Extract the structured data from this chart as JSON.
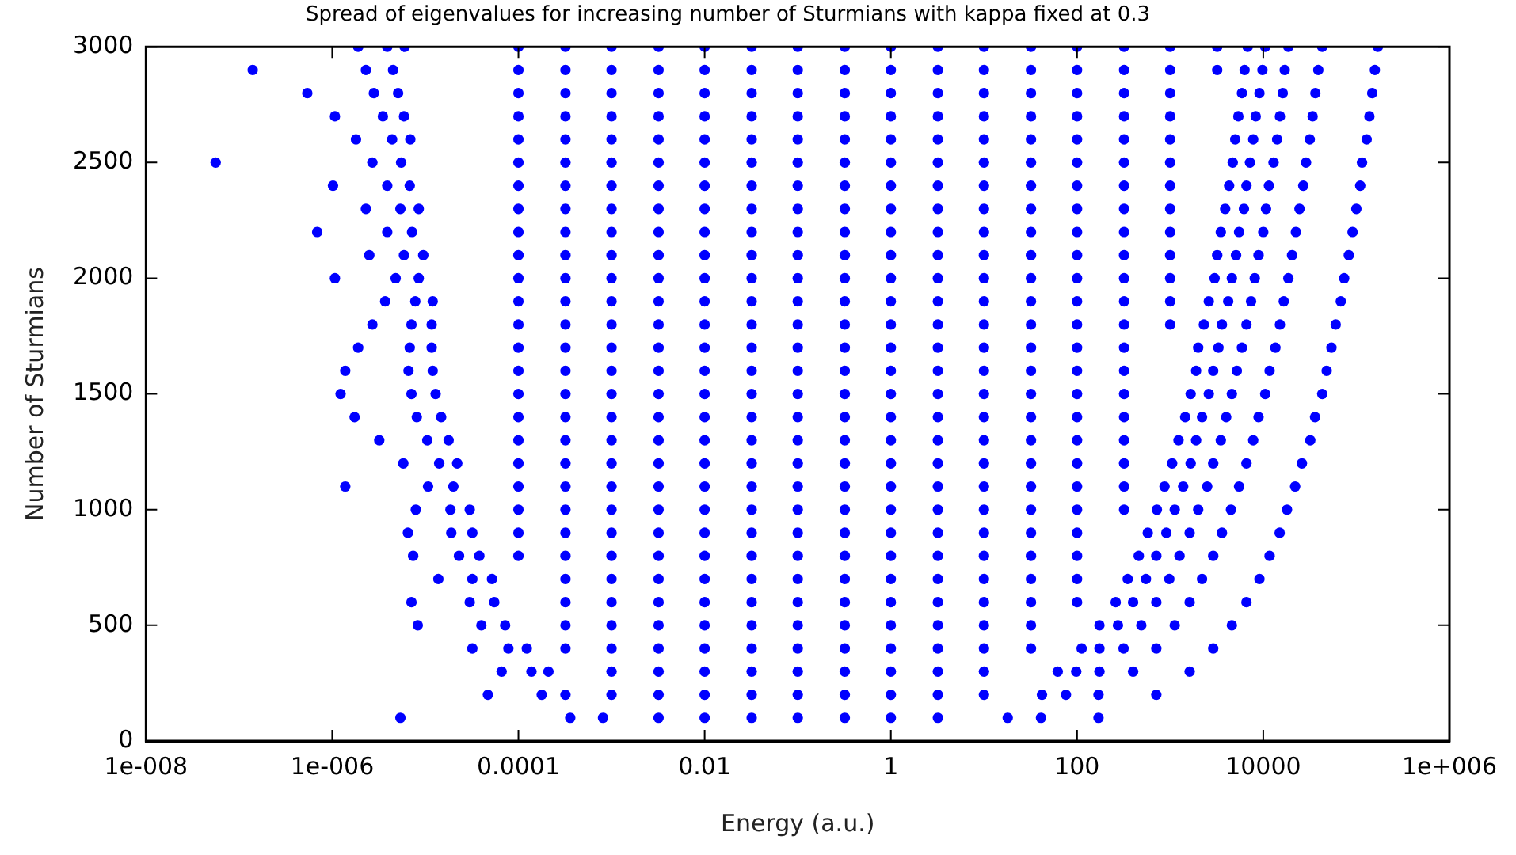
{
  "chart_data": {
    "type": "scatter",
    "title": "Spread of eigenvalues for increasing number of Sturmians with kappa fixed at 0.3",
    "xlabel": "Energy (a.u.)",
    "ylabel": "Number of Sturmians",
    "log": "x",
    "grid": false,
    "legend": false,
    "marker": "circle",
    "xlim": [
      1e-08,
      1000000.0
    ],
    "xticks": [
      {
        "value": 1e-08,
        "label": "1e-008"
      },
      {
        "value": 1e-06,
        "label": "1e-006"
      },
      0.0001,
      0.01,
      1,
      100,
      10000,
      {
        "value": 1000000.0,
        "label": "1e+006"
      }
    ],
    "ylim": [
      0,
      3000
    ],
    "yticks": [
      0,
      500,
      1000,
      1500,
      2000,
      2500,
      3000
    ],
    "series": [
      {
        "color": "#0000ff",
        "x": [
          1.9e-06,
          3.9e-06,
          6e-06,
          0.0001,
          0.00032,
          0.001,
          0.0032,
          0.01,
          0.032,
          0.1,
          0.32,
          1,
          3.2,
          10,
          32,
          100,
          320,
          1000,
          3200,
          6800,
          10500,
          18600,
          43000,
          170000
        ],
        "values": [
          3000,
          3000,
          3000,
          3000,
          3000,
          3000,
          3000,
          3000,
          3000,
          3000,
          3000,
          3000,
          3000,
          3000,
          3000,
          3000,
          3000,
          3000,
          3000,
          3000,
          3000,
          3000,
          3000,
          3000
        ]
      },
      {
        "color": "#0000ff",
        "x": [
          1.4e-07,
          2.3e-06,
          4.5e-06,
          0.0001,
          0.00032,
          0.001,
          0.0032,
          0.01,
          0.032,
          0.1,
          0.32,
          1,
          3.2,
          10,
          32,
          100,
          320,
          1000,
          3200,
          6300,
          9800,
          17000,
          39000,
          158000
        ],
        "values": [
          2900,
          2900,
          2900,
          2900,
          2900,
          2900,
          2900,
          2900,
          2900,
          2900,
          2900,
          2900,
          2900,
          2900,
          2900,
          2900,
          2900,
          2900,
          2900,
          2900,
          2900,
          2900,
          2900,
          2900
        ]
      },
      {
        "color": "#0000ff",
        "x": [
          5.4e-07,
          2.8e-06,
          5.1e-06,
          0.0001,
          0.00032,
          0.001,
          0.0032,
          0.01,
          0.032,
          0.1,
          0.32,
          1,
          3.2,
          10,
          32,
          100,
          320,
          1000,
          5900,
          9100,
          16200,
          36300,
          148000
        ],
        "values": [
          2800,
          2800,
          2800,
          2800,
          2800,
          2800,
          2800,
          2800,
          2800,
          2800,
          2800,
          2800,
          2800,
          2800,
          2800,
          2800,
          2800,
          2800,
          2800,
          2800,
          2800,
          2800,
          2800
        ]
      },
      {
        "color": "#0000ff",
        "x": [
          1.07e-06,
          3.5e-06,
          5.9e-06,
          0.0001,
          0.00032,
          0.001,
          0.0032,
          0.01,
          0.032,
          0.1,
          0.32,
          1,
          3.2,
          10,
          32,
          100,
          320,
          1000,
          5400,
          8300,
          15100,
          33900,
          138000
        ],
        "values": [
          2700,
          2700,
          2700,
          2700,
          2700,
          2700,
          2700,
          2700,
          2700,
          2700,
          2700,
          2700,
          2700,
          2700,
          2700,
          2700,
          2700,
          2700,
          2700,
          2700,
          2700,
          2700,
          2700
        ]
      },
      {
        "color": "#0000ff",
        "x": [
          1.8e-06,
          4.4e-06,
          6.9e-06,
          0.0001,
          0.00032,
          0.001,
          0.0032,
          0.01,
          0.032,
          0.1,
          0.32,
          1,
          3.2,
          10,
          32,
          100,
          320,
          1000,
          5000,
          7800,
          14100,
          31600,
          129000
        ],
        "values": [
          2600,
          2600,
          2600,
          2600,
          2600,
          2600,
          2600,
          2600,
          2600,
          2600,
          2600,
          2600,
          2600,
          2600,
          2600,
          2600,
          2600,
          2600,
          2600,
          2600,
          2600,
          2600,
          2600
        ]
      },
      {
        "color": "#0000ff",
        "x": [
          5.6e-08,
          2.7e-06,
          5.5e-06,
          0.0001,
          0.00032,
          0.001,
          0.0032,
          0.01,
          0.032,
          0.1,
          0.32,
          1,
          3.2,
          10,
          32,
          100,
          320,
          1000,
          4700,
          7200,
          12900,
          28800,
          115000
        ],
        "values": [
          2500,
          2500,
          2500,
          2500,
          2500,
          2500,
          2500,
          2500,
          2500,
          2500,
          2500,
          2500,
          2500,
          2500,
          2500,
          2500,
          2500,
          2500,
          2500,
          2500,
          2500,
          2500,
          2500
        ]
      },
      {
        "color": "#0000ff",
        "x": [
          1.02e-06,
          3.9e-06,
          6.8e-06,
          0.0001,
          0.00032,
          0.001,
          0.0032,
          0.01,
          0.032,
          0.1,
          0.32,
          1,
          3.2,
          10,
          32,
          100,
          320,
          1000,
          4300,
          6600,
          11500,
          26900,
          110000
        ],
        "values": [
          2400,
          2400,
          2400,
          2400,
          2400,
          2400,
          2400,
          2400,
          2400,
          2400,
          2400,
          2400,
          2400,
          2400,
          2400,
          2400,
          2400,
          2400,
          2400,
          2400,
          2400,
          2400,
          2400
        ]
      },
      {
        "color": "#0000ff",
        "x": [
          2.3e-06,
          5.4e-06,
          8.5e-06,
          0.0001,
          0.00032,
          0.001,
          0.0032,
          0.01,
          0.032,
          0.1,
          0.32,
          1,
          3.2,
          10,
          32,
          100,
          320,
          1000,
          3900,
          6200,
          10700,
          24500,
          100000
        ],
        "values": [
          2300,
          2300,
          2300,
          2300,
          2300,
          2300,
          2300,
          2300,
          2300,
          2300,
          2300,
          2300,
          2300,
          2300,
          2300,
          2300,
          2300,
          2300,
          2300,
          2300,
          2300,
          2300,
          2300
        ]
      },
      {
        "color": "#0000ff",
        "x": [
          6.9e-07,
          3.9e-06,
          7.2e-06,
          0.0001,
          0.00032,
          0.001,
          0.0032,
          0.01,
          0.032,
          0.1,
          0.32,
          1,
          3.2,
          10,
          32,
          100,
          320,
          1000,
          3500,
          5500,
          10000,
          22400,
          91000
        ],
        "values": [
          2200,
          2200,
          2200,
          2200,
          2200,
          2200,
          2200,
          2200,
          2200,
          2200,
          2200,
          2200,
          2200,
          2200,
          2200,
          2200,
          2200,
          2200,
          2200,
          2200,
          2200,
          2200,
          2200
        ]
      },
      {
        "color": "#0000ff",
        "x": [
          2.5e-06,
          5.9e-06,
          9.5e-06,
          0.0001,
          0.00032,
          0.001,
          0.0032,
          0.01,
          0.032,
          0.1,
          0.32,
          1,
          3.2,
          10,
          32,
          100,
          320,
          1000,
          3200,
          5100,
          8900,
          20400,
          83000
        ],
        "values": [
          2100,
          2100,
          2100,
          2100,
          2100,
          2100,
          2100,
          2100,
          2100,
          2100,
          2100,
          2100,
          2100,
          2100,
          2100,
          2100,
          2100,
          2100,
          2100,
          2100,
          2100,
          2100,
          2100
        ]
      },
      {
        "color": "#0000ff",
        "x": [
          1.07e-06,
          4.8e-06,
          8.5e-06,
          0.0001,
          0.00032,
          0.001,
          0.0032,
          0.01,
          0.032,
          0.1,
          0.32,
          1,
          3.2,
          10,
          32,
          100,
          320,
          1000,
          3000,
          4600,
          8100,
          18600,
          74000
        ],
        "values": [
          2000,
          2000,
          2000,
          2000,
          2000,
          2000,
          2000,
          2000,
          2000,
          2000,
          2000,
          2000,
          2000,
          2000,
          2000,
          2000,
          2000,
          2000,
          2000,
          2000,
          2000,
          2000,
          2000
        ]
      },
      {
        "color": "#0000ff",
        "x": [
          3.7e-06,
          7.8e-06,
          1.2e-05,
          0.0001,
          0.00032,
          0.001,
          0.0032,
          0.01,
          0.032,
          0.1,
          0.32,
          1,
          3.2,
          10,
          32,
          100,
          320,
          1000,
          2600,
          4200,
          7400,
          16600,
          68000
        ],
        "values": [
          1900,
          1900,
          1900,
          1900,
          1900,
          1900,
          1900,
          1900,
          1900,
          1900,
          1900,
          1900,
          1900,
          1900,
          1900,
          1900,
          1900,
          1900,
          1900,
          1900,
          1900,
          1900,
          1900
        ]
      },
      {
        "color": "#0000ff",
        "x": [
          2.7e-06,
          7.1e-06,
          1.17e-05,
          0.0001,
          0.00032,
          0.001,
          0.0032,
          0.01,
          0.032,
          0.1,
          0.32,
          1,
          3.2,
          10,
          32,
          100,
          320,
          1000,
          2300,
          3600,
          6600,
          15100,
          60000
        ],
        "values": [
          1800,
          1800,
          1800,
          1800,
          1800,
          1800,
          1800,
          1800,
          1800,
          1800,
          1800,
          1800,
          1800,
          1800,
          1800,
          1800,
          1800,
          1800,
          1800,
          1800,
          1800,
          1800,
          1800
        ]
      },
      {
        "color": "#0000ff",
        "x": [
          1.9e-06,
          6.8e-06,
          1.17e-05,
          0.0001,
          0.00032,
          0.001,
          0.0032,
          0.01,
          0.032,
          0.1,
          0.32,
          1,
          3.2,
          10,
          32,
          100,
          320,
          2000,
          3300,
          5900,
          13500,
          54000
        ],
        "values": [
          1700,
          1700,
          1700,
          1700,
          1700,
          1700,
          1700,
          1700,
          1700,
          1700,
          1700,
          1700,
          1700,
          1700,
          1700,
          1700,
          1700,
          1700,
          1700,
          1700,
          1700,
          1700
        ]
      },
      {
        "color": "#0000ff",
        "x": [
          1.38e-06,
          6.6e-06,
          1.2e-05,
          0.0001,
          0.00032,
          0.001,
          0.0032,
          0.01,
          0.032,
          0.1,
          0.32,
          1,
          3.2,
          10,
          32,
          100,
          320,
          1900,
          2900,
          5200,
          11700,
          48000
        ],
        "values": [
          1600,
          1600,
          1600,
          1600,
          1600,
          1600,
          1600,
          1600,
          1600,
          1600,
          1600,
          1600,
          1600,
          1600,
          1600,
          1600,
          1600,
          1600,
          1600,
          1600,
          1600,
          1600
        ]
      },
      {
        "color": "#0000ff",
        "x": [
          1.23e-06,
          7.1e-06,
          1.29e-05,
          0.0001,
          0.00032,
          0.001,
          0.0032,
          0.01,
          0.032,
          0.1,
          0.32,
          1,
          3.2,
          10,
          32,
          100,
          320,
          1660,
          2600,
          4600,
          10500,
          43000
        ],
        "values": [
          1500,
          1500,
          1500,
          1500,
          1500,
          1500,
          1500,
          1500,
          1500,
          1500,
          1500,
          1500,
          1500,
          1500,
          1500,
          1500,
          1500,
          1500,
          1500,
          1500,
          1500,
          1500
        ]
      },
      {
        "color": "#0000ff",
        "x": [
          1.74e-06,
          8.1e-06,
          1.48e-05,
          0.0001,
          0.00032,
          0.001,
          0.0032,
          0.01,
          0.032,
          0.1,
          0.32,
          1,
          3.2,
          10,
          32,
          100,
          320,
          1450,
          2200,
          4000,
          8900,
          36000
        ],
        "values": [
          1400,
          1400,
          1400,
          1400,
          1400,
          1400,
          1400,
          1400,
          1400,
          1400,
          1400,
          1400,
          1400,
          1400,
          1400,
          1400,
          1400,
          1400,
          1400,
          1400,
          1400,
          1400
        ]
      },
      {
        "color": "#0000ff",
        "x": [
          3.2e-06,
          1.05e-05,
          1.78e-05,
          0.0001,
          0.00032,
          0.001,
          0.0032,
          0.01,
          0.032,
          0.1,
          0.32,
          1,
          3.2,
          10,
          32,
          100,
          320,
          1230,
          1900,
          3500,
          7800,
          32000
        ],
        "values": [
          1300,
          1300,
          1300,
          1300,
          1300,
          1300,
          1300,
          1300,
          1300,
          1300,
          1300,
          1300,
          1300,
          1300,
          1300,
          1300,
          1300,
          1300,
          1300,
          1300,
          1300,
          1300
        ]
      },
      {
        "color": "#0000ff",
        "x": [
          5.8e-06,
          1.41e-05,
          2.2e-05,
          0.0001,
          0.00032,
          0.001,
          0.0032,
          0.01,
          0.032,
          0.1,
          0.32,
          1,
          3.2,
          10,
          32,
          100,
          320,
          1050,
          1660,
          2900,
          6600,
          26000
        ],
        "values": [
          1200,
          1200,
          1200,
          1200,
          1200,
          1200,
          1200,
          1200,
          1200,
          1200,
          1200,
          1200,
          1200,
          1200,
          1200,
          1200,
          1200,
          1200,
          1200,
          1200,
          1200,
          1200
        ]
      },
      {
        "color": "#0000ff",
        "x": [
          1.38e-06,
          1.07e-05,
          2e-05,
          0.0001,
          0.00032,
          0.001,
          0.0032,
          0.01,
          0.032,
          0.1,
          0.32,
          1,
          3.2,
          10,
          32,
          100,
          320,
          870,
          1380,
          2500,
          5500,
          22000
        ],
        "values": [
          1100,
          1100,
          1100,
          1100,
          1100,
          1100,
          1100,
          1100,
          1100,
          1100,
          1100,
          1100,
          1100,
          1100,
          1100,
          1100,
          1100,
          1100,
          1100,
          1100,
          1100,
          1100
        ]
      },
      {
        "color": "#0000ff",
        "x": [
          7.9e-06,
          1.86e-05,
          3e-05,
          0.0001,
          0.00032,
          0.001,
          0.0032,
          0.01,
          0.032,
          0.1,
          0.32,
          1,
          3.2,
          10,
          32,
          100,
          320,
          720,
          1120,
          2000,
          4500,
          18000
        ],
        "values": [
          1000,
          1000,
          1000,
          1000,
          1000,
          1000,
          1000,
          1000,
          1000,
          1000,
          1000,
          1000,
          1000,
          1000,
          1000,
          1000,
          1000,
          1000,
          1000,
          1000,
          1000,
          1000
        ]
      },
      {
        "color": "#0000ff",
        "x": [
          6.5e-06,
          1.9e-05,
          3.2e-05,
          0.0001,
          0.00032,
          0.001,
          0.0032,
          0.01,
          0.032,
          0.1,
          0.32,
          1,
          3.2,
          10,
          32,
          100,
          575,
          910,
          1620,
          3600,
          15000
        ],
        "values": [
          900,
          900,
          900,
          900,
          900,
          900,
          900,
          900,
          900,
          900,
          900,
          900,
          900,
          900,
          900,
          900,
          900,
          900,
          900,
          900,
          900
        ]
      },
      {
        "color": "#0000ff",
        "x": [
          7.4e-06,
          2.3e-05,
          3.8e-05,
          0.0001,
          0.00032,
          0.001,
          0.0032,
          0.01,
          0.032,
          0.1,
          0.32,
          1,
          3.2,
          10,
          32,
          100,
          460,
          710,
          1260,
          2900,
          11700
        ],
        "values": [
          800,
          800,
          800,
          800,
          800,
          800,
          800,
          800,
          800,
          800,
          800,
          800,
          800,
          800,
          800,
          800,
          800,
          800,
          800,
          800,
          800
        ]
      },
      {
        "color": "#0000ff",
        "x": [
          1.38e-05,
          3.2e-05,
          5.2e-05,
          0.00032,
          0.001,
          0.0032,
          0.01,
          0.032,
          0.1,
          0.32,
          1,
          3.2,
          10,
          32,
          100,
          350,
          550,
          980,
          2200,
          9100
        ],
        "values": [
          700,
          700,
          700,
          700,
          700,
          700,
          700,
          700,
          700,
          700,
          700,
          700,
          700,
          700,
          700,
          700,
          700,
          700,
          700,
          700
        ]
      },
      {
        "color": "#0000ff",
        "x": [
          7.1e-06,
          3e-05,
          5.5e-05,
          0.00032,
          0.001,
          0.0032,
          0.01,
          0.032,
          0.1,
          0.32,
          1,
          3.2,
          10,
          32,
          100,
          260,
          400,
          710,
          1620,
          6600
        ],
        "values": [
          600,
          600,
          600,
          600,
          600,
          600,
          600,
          600,
          600,
          600,
          600,
          600,
          600,
          600,
          600,
          600,
          600,
          600,
          600,
          600
        ]
      },
      {
        "color": "#0000ff",
        "x": [
          8.3e-06,
          4e-05,
          7.2e-05,
          0.00032,
          0.001,
          0.0032,
          0.01,
          0.032,
          0.1,
          0.32,
          1,
          3.2,
          10,
          32,
          174,
          275,
          490,
          1120,
          4600
        ],
        "values": [
          500,
          500,
          500,
          500,
          500,
          500,
          500,
          500,
          500,
          500,
          500,
          500,
          500,
          500,
          500,
          500,
          500,
          500,
          500
        ]
      },
      {
        "color": "#0000ff",
        "x": [
          3.2e-05,
          7.8e-05,
          0.000123,
          0.00032,
          0.001,
          0.0032,
          0.01,
          0.032,
          0.1,
          0.32,
          1,
          3.2,
          10,
          32,
          112,
          174,
          316,
          710,
          2900
        ],
        "values": [
          400,
          400,
          400,
          400,
          400,
          400,
          400,
          400,
          400,
          400,
          400,
          400,
          400,
          400,
          400,
          400,
          400,
          400,
          400
        ]
      },
      {
        "color": "#0000ff",
        "x": [
          6.6e-05,
          0.000138,
          0.00021,
          0.001,
          0.0032,
          0.01,
          0.032,
          0.1,
          0.32,
          1,
          3.2,
          10,
          62,
          98,
          174,
          400,
          1620
        ],
        "values": [
          300,
          300,
          300,
          300,
          300,
          300,
          300,
          300,
          300,
          300,
          300,
          300,
          300,
          300,
          300,
          300,
          300
        ]
      },
      {
        "color": "#0000ff",
        "x": [
          4.7e-05,
          0.000178,
          0.00032,
          0.001,
          0.0032,
          0.01,
          0.032,
          0.1,
          0.32,
          1,
          3.2,
          10,
          42,
          76,
          170,
          710
        ],
        "values": [
          200,
          200,
          200,
          200,
          200,
          200,
          200,
          200,
          200,
          200,
          200,
          200,
          200,
          200,
          200,
          200
        ]
      },
      {
        "color": "#0000ff",
        "x": [
          5.4e-06,
          0.00036,
          0.00081,
          0.0032,
          0.01,
          0.032,
          0.1,
          0.32,
          1,
          3.2,
          18,
          41,
          170
        ],
        "values": [
          100,
          100,
          100,
          100,
          100,
          100,
          100,
          100,
          100,
          100,
          100,
          100,
          100
        ]
      }
    ]
  }
}
